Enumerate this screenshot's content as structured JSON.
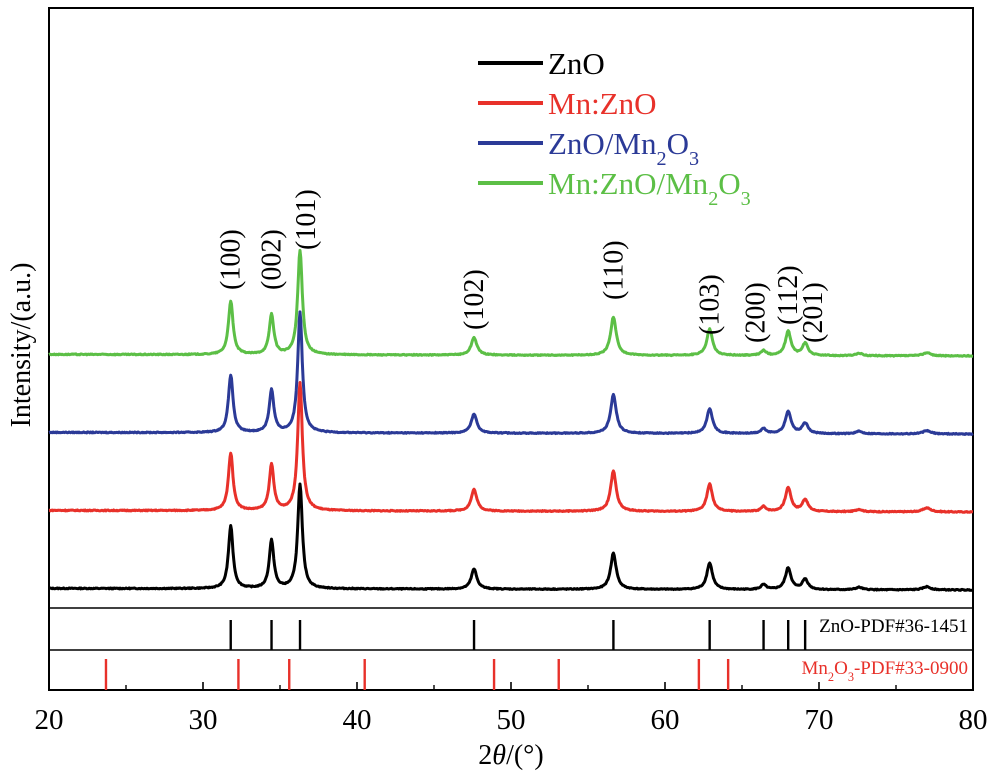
{
  "chart_data": {
    "type": "line",
    "title": "",
    "xlabel": {
      "pre": "2",
      "italic": "θ",
      "post": "/(°)"
    },
    "ylabel": "Intensity/(a.u.)",
    "xlim": [
      20,
      80
    ],
    "x_ticks": [
      20,
      30,
      40,
      50,
      60,
      70,
      80
    ],
    "grid": false,
    "legend_position": "top-center",
    "y_ticks_shown": false,
    "series": [
      {
        "key": "zno",
        "name": "ZnO",
        "color": "#000000",
        "baseline": 0.0,
        "legend": {
          "parts": [
            {
              "t": "ZnO"
            }
          ]
        },
        "peaks": [
          [
            31.8,
            0.78
          ],
          [
            34.45,
            0.6
          ],
          [
            36.3,
            1.3
          ],
          [
            47.6,
            0.25
          ],
          [
            56.65,
            0.45
          ],
          [
            62.9,
            0.33
          ],
          [
            66.4,
            0.06
          ],
          [
            68.0,
            0.27
          ],
          [
            69.1,
            0.13
          ],
          [
            72.6,
            0.03
          ],
          [
            77.0,
            0.04
          ]
        ]
      },
      {
        "key": "mnzno",
        "name": "Mn:ZnO",
        "color": "#e8312a",
        "baseline": 1.0,
        "legend": {
          "parts": [
            {
              "t": "Mn:ZnO"
            }
          ]
        },
        "peaks": [
          [
            31.8,
            0.72
          ],
          [
            34.45,
            0.57
          ],
          [
            36.3,
            1.6
          ],
          [
            47.6,
            0.27
          ],
          [
            56.65,
            0.5
          ],
          [
            62.9,
            0.34
          ],
          [
            66.4,
            0.06
          ],
          [
            68.0,
            0.3
          ],
          [
            69.1,
            0.15
          ],
          [
            72.6,
            0.03
          ],
          [
            77.0,
            0.05
          ]
        ]
      },
      {
        "key": "znomn",
        "name": "ZnO/Mn2O3",
        "color": "#2b3a97",
        "baseline": 2.0,
        "legend": {
          "parts": [
            {
              "t": "ZnO/Mn"
            },
            {
              "t": "2",
              "sub": true
            },
            {
              "t": "O"
            },
            {
              "t": "3",
              "sub": true
            }
          ]
        },
        "peaks": [
          [
            31.8,
            0.72
          ],
          [
            34.45,
            0.53
          ],
          [
            36.3,
            1.5
          ],
          [
            47.6,
            0.24
          ],
          [
            56.65,
            0.48
          ],
          [
            62.9,
            0.31
          ],
          [
            66.4,
            0.06
          ],
          [
            68.0,
            0.28
          ],
          [
            69.1,
            0.13
          ],
          [
            72.6,
            0.03
          ],
          [
            77.0,
            0.04
          ]
        ]
      },
      {
        "key": "mnznomn",
        "name": "Mn:ZnO/Mn2O3",
        "color": "#5cbf46",
        "baseline": 3.0,
        "legend": {
          "parts": [
            {
              "t": "Mn:ZnO/Mn"
            },
            {
              "t": "2",
              "sub": true
            },
            {
              "t": "O"
            },
            {
              "t": "3",
              "sub": true
            }
          ]
        },
        "peaks": [
          [
            31.8,
            0.67
          ],
          [
            34.45,
            0.5
          ],
          [
            36.3,
            1.3
          ],
          [
            47.6,
            0.22
          ],
          [
            56.65,
            0.48
          ],
          [
            62.9,
            0.33
          ],
          [
            66.4,
            0.06
          ],
          [
            68.0,
            0.3
          ],
          [
            69.1,
            0.15
          ],
          [
            72.6,
            0.03
          ],
          [
            77.0,
            0.04
          ]
        ]
      }
    ],
    "peak_labels": [
      {
        "x": 31.8,
        "text": "(100)"
      },
      {
        "x": 34.45,
        "text": "(002)"
      },
      {
        "x": 36.3,
        "text": "(101)"
      },
      {
        "x": 47.6,
        "text": "(102)"
      },
      {
        "x": 56.65,
        "text": "(110)"
      },
      {
        "x": 62.9,
        "text": "(103)"
      },
      {
        "x": 66.4,
        "text": "(200)"
      },
      {
        "x": 68.0,
        "text": "(112)"
      },
      {
        "x": 69.1,
        "text": "(201)"
      }
    ],
    "references": [
      {
        "key": "zno-ref",
        "color": "#000000",
        "label": {
          "parts": [
            {
              "t": "ZnO-PDF#36-1451"
            }
          ]
        },
        "lines": [
          31.8,
          34.45,
          36.3,
          47.6,
          56.65,
          62.9,
          66.4,
          68.0,
          69.1
        ]
      },
      {
        "key": "mn2o3-ref",
        "color": "#e8312a",
        "label": {
          "parts": [
            {
              "t": "Mn"
            },
            {
              "t": "2",
              "sub": true
            },
            {
              "t": "O"
            },
            {
              "t": "3",
              "sub": true
            },
            {
              "t": "-PDF#33-0900"
            }
          ]
        },
        "lines": [
          23.7,
          32.3,
          35.6,
          40.5,
          48.9,
          53.1,
          62.2,
          64.1
        ]
      }
    ]
  }
}
